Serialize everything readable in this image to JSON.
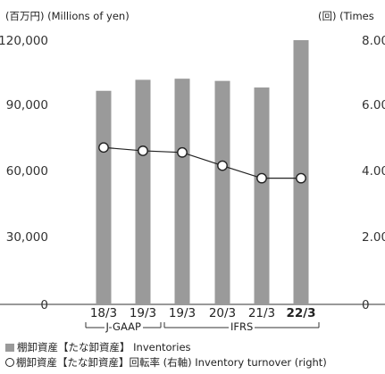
{
  "chart_data": {
    "type": "bar+line",
    "unit_left": "(百万円) (Millions of yen)",
    "unit_right": "(回) (Times",
    "categories": [
      "18/3",
      "19/3",
      "19/3",
      "20/3",
      "21/3",
      "22/3"
    ],
    "bold_category_index": 5,
    "periods": [
      {
        "label": "J-GAAP",
        "from": 0,
        "to": 1
      },
      {
        "label": "IFRS",
        "from": 2,
        "to": 5
      }
    ],
    "y_left": {
      "ticks": [
        "120,000",
        "90,000",
        "60,000",
        "30,000",
        "0"
      ],
      "min": 0,
      "max": 120000
    },
    "y_right": {
      "ticks": [
        "8.00",
        "6.00",
        "4.00",
        "2.00",
        "0"
      ],
      "min": 0,
      "max": 8
    },
    "series": [
      {
        "name": "棚卸資産【たな卸資産】 Inventories",
        "kind": "bar",
        "axis": "left",
        "color": "#9a9a9a",
        "values": [
          97000,
          102000,
          102500,
          101500,
          98500,
          120000
        ]
      },
      {
        "name": "棚卸資産【たな卸資産】回転率 (右軸) Inventory turnover (right)",
        "kind": "line",
        "axis": "right",
        "color": "#222222",
        "values": [
          4.75,
          4.65,
          4.6,
          4.2,
          3.82,
          3.82
        ]
      }
    ],
    "grid": false
  },
  "legend": {
    "bar_label": "棚卸資産【たな卸資産】 Inventories",
    "line_label": "棚卸資産【たな卸資産】回転率 (右軸) Inventory turnover (right)"
  }
}
